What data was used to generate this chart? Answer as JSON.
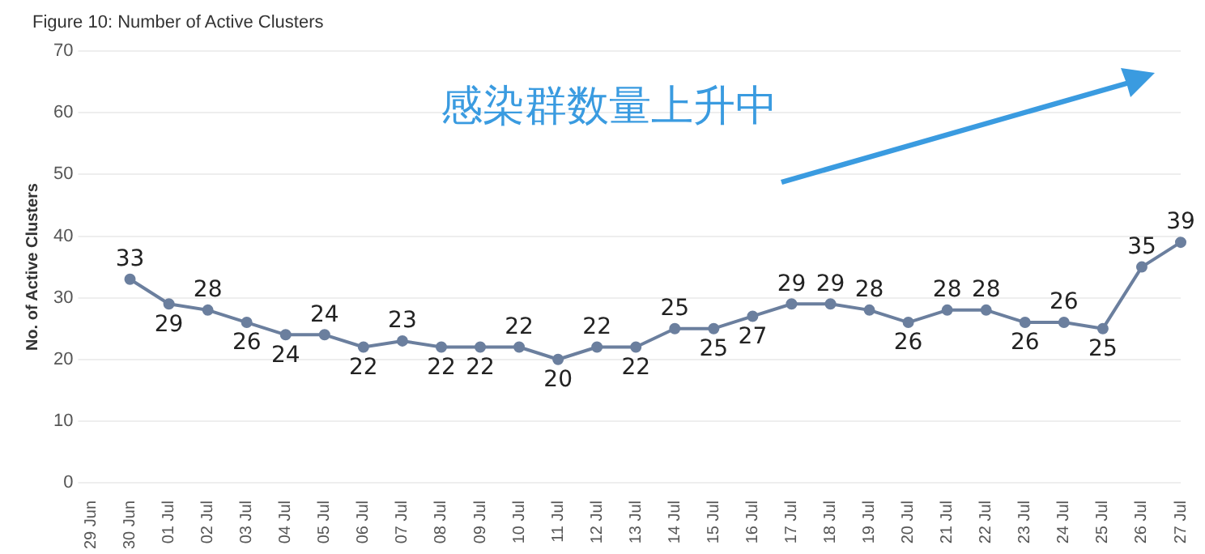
{
  "chart_data": {
    "type": "line",
    "title": "Figure 10: Number of Active Clusters",
    "ylabel": "No. of Active Clusters",
    "categories": [
      "29 Jun",
      "30 Jun",
      "01 Jul",
      "02 Jul",
      "03 Jul",
      "04 Jul",
      "05 Jul",
      "06 Jul",
      "07 Jul",
      "08 Jul",
      "09 Jul",
      "10 Jul",
      "11 Jul",
      "12 Jul",
      "13 Jul",
      "14 Jul",
      "15 Jul",
      "16 Jul",
      "17 Jul",
      "18 Jul",
      "19 Jul",
      "20 Jul",
      "21 Jul",
      "22 Jul",
      "23 Jul",
      "24 Jul",
      "25 Jul",
      "26 Jul",
      "27 Jul"
    ],
    "series": [
      {
        "color": "#6b7f9e",
        "values": [
          null,
          33,
          29,
          28,
          26,
          24,
          24,
          22,
          23,
          22,
          22,
          22,
          20,
          22,
          22,
          25,
          25,
          27,
          29,
          29,
          28,
          26,
          28,
          28,
          26,
          26,
          25,
          35,
          39
        ]
      }
    ],
    "ylim": [
      0,
      70
    ],
    "yticks": [
      0,
      10,
      20,
      30,
      40,
      50,
      60,
      70
    ],
    "grid": "y",
    "legend": false,
    "marker": "circle",
    "line_style": "solid",
    "data_labels": true,
    "annotations": [
      "感染群数量上升中"
    ]
  }
}
